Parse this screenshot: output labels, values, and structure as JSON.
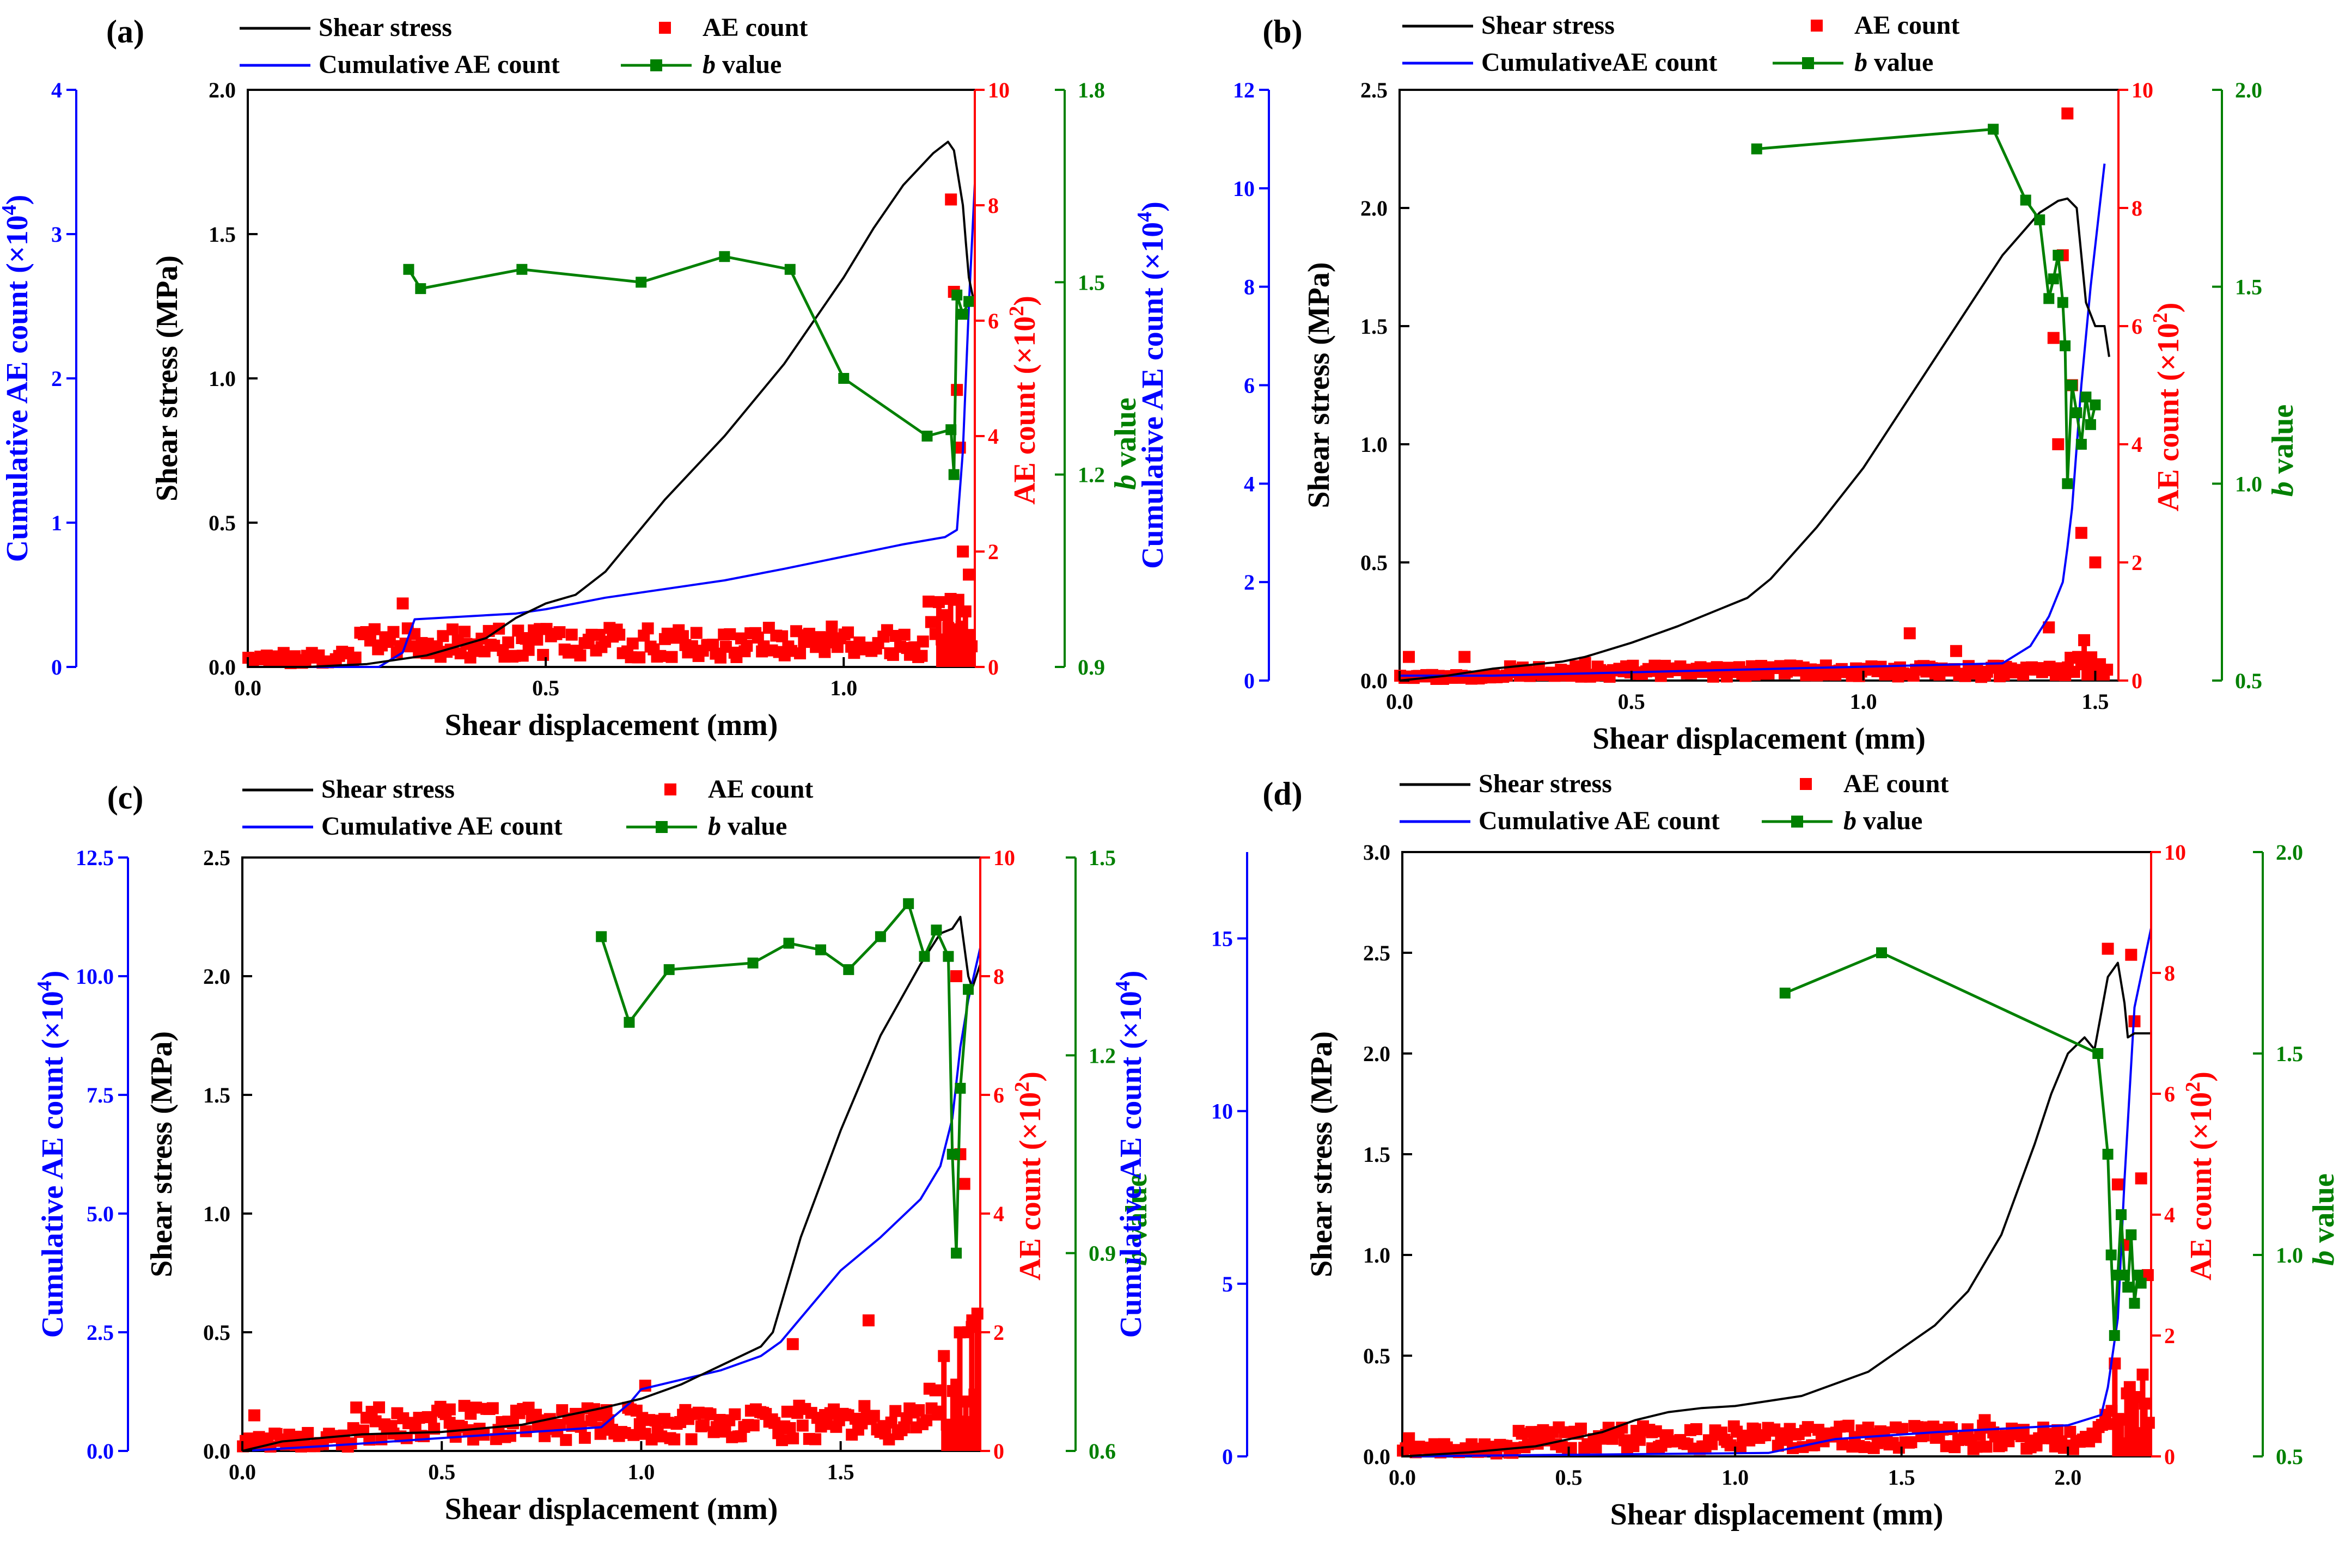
{
  "colors": {
    "stress": "#000000",
    "cum": "#0000ff",
    "ae": "#ff0000",
    "b": "#008000"
  },
  "chart_data": [
    {
      "panel": "(a)",
      "type": "line",
      "legend": {
        "stress": "Shear stress",
        "ae": "AE count",
        "cum": "Cumulative AE count",
        "b": "b value"
      },
      "legend_italic_prefix": "b",
      "xlabel": "Shear displacement (mm)",
      "ylabel_stress": "Shear stress (MPa)",
      "ylabel_cum": {
        "main": "Cumulative AE count (×10",
        "sup": "4",
        "end": ")"
      },
      "ylabel_ae": {
        "main": "AE count (×10",
        "sup": "2",
        "end": ")"
      },
      "ylabel_b": {
        "italic": "b",
        "rest": " value"
      },
      "xlim": [
        0,
        1.22
      ],
      "xticks": [
        0.0,
        0.5,
        1.0
      ],
      "xtick_labels": [
        "0.0",
        "0.5",
        "1.0"
      ],
      "stress_lim": [
        0,
        2.0
      ],
      "stress_ticks": [
        0.0,
        0.5,
        1.0,
        1.5,
        2.0
      ],
      "stress_tick_labels": [
        "0.0",
        "0.5",
        "1.0",
        "1.5",
        "2.0"
      ],
      "cum_lim": [
        0,
        4
      ],
      "cum_ticks": [
        0,
        1,
        2,
        3,
        4
      ],
      "cum_tick_labels": [
        "0",
        "1",
        "2",
        "3",
        "4"
      ],
      "ae_lim": [
        0,
        10
      ],
      "ae_ticks": [
        0,
        2,
        4,
        6,
        8,
        10
      ],
      "ae_tick_labels": [
        "0",
        "2",
        "4",
        "6",
        "8",
        "10"
      ],
      "b_lim": [
        0.9,
        1.8
      ],
      "b_ticks": [
        0.9,
        1.2,
        1.5,
        1.8
      ],
      "b_tick_labels": [
        "0.9",
        "1.2",
        "1.5",
        "1.8"
      ],
      "series_stress": {
        "x": [
          0,
          0.1,
          0.2,
          0.3,
          0.4,
          0.45,
          0.5,
          0.55,
          0.6,
          0.7,
          0.8,
          0.9,
          1.0,
          1.05,
          1.1,
          1.15,
          1.175,
          1.185,
          1.2,
          1.205,
          1.21,
          1.22
        ],
        "y": [
          0,
          0,
          0.01,
          0.04,
          0.1,
          0.17,
          0.22,
          0.25,
          0.33,
          0.58,
          0.8,
          1.05,
          1.35,
          1.52,
          1.67,
          1.78,
          1.82,
          1.79,
          1.6,
          1.47,
          1.35,
          1.25
        ]
      },
      "series_cum": {
        "x": [
          0,
          0.22,
          0.26,
          0.28,
          0.45,
          0.5,
          0.6,
          0.8,
          0.9,
          1.1,
          1.17,
          1.19,
          1.2,
          1.21,
          1.22
        ],
        "y": [
          0,
          0,
          0.1,
          0.33,
          0.37,
          0.4,
          0.48,
          0.6,
          0.68,
          0.85,
          0.9,
          0.95,
          1.5,
          2.5,
          3.35
        ]
      },
      "series_ae": {
        "x_range": [
          0,
          1.22
        ],
        "typical_value": 0.4,
        "sample_count": 210,
        "spikes": [
          {
            "x": 0.26,
            "y": 1.1
          },
          {
            "x": 0.46,
            "y": 0.5
          },
          {
            "x": 0.98,
            "y": 0.7
          },
          {
            "x": 1.18,
            "y": 8.1
          },
          {
            "x": 1.185,
            "y": 6.5
          },
          {
            "x": 1.19,
            "y": 4.8
          },
          {
            "x": 1.195,
            "y": 3.8
          },
          {
            "x": 1.2,
            "y": 2.0
          },
          {
            "x": 1.21,
            "y": 1.6
          }
        ]
      },
      "series_b": {
        "x": [
          0.27,
          0.29,
          0.46,
          0.66,
          0.8,
          0.91,
          1.0,
          1.14,
          1.18,
          1.185,
          1.19,
          1.2,
          1.21
        ],
        "y": [
          1.52,
          1.49,
          1.52,
          1.5,
          1.54,
          1.52,
          1.35,
          1.26,
          1.27,
          1.2,
          1.48,
          1.45,
          1.47
        ]
      }
    },
    {
      "panel": "(b)",
      "type": "line",
      "legend": {
        "stress": "Shear stress",
        "ae": "AE count",
        "cum": "CumulativeAE count",
        "b": "b value"
      },
      "xlabel": "Shear displacement (mm)",
      "ylabel_stress": "Shear stress (MPa)",
      "ylabel_cum": {
        "main": "Cumulative AE count (×10",
        "sup": "4",
        "end": ")"
      },
      "ylabel_ae": {
        "main": "AE count (×10",
        "sup": "2",
        "end": ")"
      },
      "ylabel_b": {
        "italic": "b",
        "rest": " value"
      },
      "xlim": [
        0,
        1.55
      ],
      "xticks": [
        0.0,
        0.5,
        1.0,
        1.5
      ],
      "xtick_labels": [
        "0.0",
        "0.5",
        "1.0",
        "1.5"
      ],
      "stress_lim": [
        0,
        2.5
      ],
      "stress_ticks": [
        0.0,
        0.5,
        1.0,
        1.5,
        2.0,
        2.5
      ],
      "stress_tick_labels": [
        "0.0",
        "0.5",
        "1.0",
        "1.5",
        "2.0",
        "2.5"
      ],
      "cum_lim": [
        0,
        12
      ],
      "cum_ticks": [
        0,
        2,
        4,
        6,
        8,
        10,
        12
      ],
      "cum_tick_labels": [
        "0",
        "2",
        "4",
        "6",
        "8",
        "10",
        "12"
      ],
      "ae_lim": [
        0,
        10
      ],
      "ae_ticks": [
        0,
        2,
        4,
        6,
        8,
        10
      ],
      "ae_tick_labels": [
        "0",
        "2",
        "4",
        "6",
        "8",
        "10"
      ],
      "b_lim": [
        0.5,
        2.0
      ],
      "b_ticks": [
        0.5,
        1.0,
        1.5,
        2.0
      ],
      "b_tick_labels": [
        "0.5",
        "1.0",
        "1.5",
        "2.0"
      ],
      "series_stress": {
        "x": [
          0,
          0.1,
          0.2,
          0.3,
          0.35,
          0.4,
          0.5,
          0.6,
          0.7,
          0.75,
          0.8,
          0.9,
          1.0,
          1.1,
          1.2,
          1.3,
          1.38,
          1.42,
          1.44,
          1.46,
          1.48,
          1.5,
          1.52,
          1.53
        ],
        "y": [
          0,
          0.02,
          0.05,
          0.07,
          0.08,
          0.1,
          0.16,
          0.23,
          0.31,
          0.35,
          0.43,
          0.65,
          0.9,
          1.2,
          1.5,
          1.8,
          1.98,
          2.03,
          2.04,
          2.0,
          1.6,
          1.5,
          1.5,
          1.37
        ]
      },
      "series_cum": {
        "x": [
          0,
          0.2,
          1.3,
          1.36,
          1.4,
          1.43,
          1.44,
          1.45,
          1.47,
          1.49,
          1.52
        ],
        "y": [
          0.1,
          0.1,
          0.35,
          0.7,
          1.3,
          2.0,
          2.7,
          3.5,
          6.0,
          8.0,
          10.5
        ]
      },
      "series_ae": {
        "x_range": [
          0,
          1.53
        ],
        "typical_value": 0.15,
        "sample_count": 220,
        "spikes": [
          {
            "x": 0.02,
            "y": 0.4
          },
          {
            "x": 0.14,
            "y": 0.4
          },
          {
            "x": 0.4,
            "y": 0.3
          },
          {
            "x": 1.1,
            "y": 0.8
          },
          {
            "x": 1.2,
            "y": 0.5
          },
          {
            "x": 1.4,
            "y": 0.9
          },
          {
            "x": 1.44,
            "y": 9.6
          },
          {
            "x": 1.43,
            "y": 7.2
          },
          {
            "x": 1.41,
            "y": 5.8
          },
          {
            "x": 1.45,
            "y": 5.0
          },
          {
            "x": 1.42,
            "y": 4.0
          },
          {
            "x": 1.47,
            "y": 2.5
          },
          {
            "x": 1.5,
            "y": 2.0
          }
        ]
      },
      "series_b": {
        "x": [
          0.77,
          1.28,
          1.35,
          1.38,
          1.4,
          1.41,
          1.42,
          1.43,
          1.435,
          1.44,
          1.45,
          1.46,
          1.47,
          1.48,
          1.49,
          1.5
        ],
        "y": [
          1.85,
          1.9,
          1.72,
          1.67,
          1.47,
          1.52,
          1.58,
          1.46,
          1.35,
          1.0,
          1.25,
          1.18,
          1.1,
          1.22,
          1.15,
          1.2
        ]
      }
    },
    {
      "panel": "(c)",
      "type": "line",
      "legend": {
        "stress": "Shear stress",
        "ae": "AE count",
        "cum": "Cumulative AE count",
        "b": "b value"
      },
      "xlabel": "Shear displacement (mm)",
      "ylabel_stress": "Shear stress (MPa)",
      "ylabel_cum": {
        "main": "Cumulative AE count (×10",
        "sup": "4",
        "end": ")"
      },
      "ylabel_ae": {
        "main": "AE count (×10",
        "sup": "2",
        "end": ")"
      },
      "ylabel_b": {
        "italic": "b",
        "rest": " value"
      },
      "xlim": [
        0,
        1.85
      ],
      "xticks": [
        0.0,
        0.5,
        1.0,
        1.5
      ],
      "xtick_labels": [
        "0.0",
        "0.5",
        "1.0",
        "1.5"
      ],
      "stress_lim": [
        0,
        2.5
      ],
      "stress_ticks": [
        0.0,
        0.5,
        1.0,
        1.5,
        2.0,
        2.5
      ],
      "stress_tick_labels": [
        "0.0",
        "0.5",
        "1.0",
        "1.5",
        "2.0",
        "2.5"
      ],
      "cum_lim": [
        0,
        12.5
      ],
      "cum_ticks": [
        0.0,
        2.5,
        5.0,
        7.5,
        10.0,
        12.5
      ],
      "cum_tick_labels": [
        "0.0",
        "2.5",
        "5.0",
        "7.5",
        "10.0",
        "12.5"
      ],
      "ae_lim": [
        0,
        10
      ],
      "ae_ticks": [
        0,
        2,
        4,
        6,
        8,
        10
      ],
      "ae_tick_labels": [
        "0",
        "2",
        "4",
        "6",
        "8",
        "10"
      ],
      "b_lim": [
        0.6,
        1.5
      ],
      "b_ticks": [
        0.6,
        0.9,
        1.2,
        1.5
      ],
      "b_tick_labels": [
        "0.6",
        "0.9",
        "1.2",
        "1.5"
      ],
      "series_stress": {
        "x": [
          0,
          0.1,
          0.3,
          0.5,
          0.7,
          0.9,
          1.0,
          1.1,
          1.2,
          1.3,
          1.33,
          1.4,
          1.5,
          1.6,
          1.7,
          1.75,
          1.78,
          1.8,
          1.82,
          1.83,
          1.85
        ],
        "y": [
          0,
          0.04,
          0.07,
          0.08,
          0.11,
          0.18,
          0.22,
          0.28,
          0.36,
          0.44,
          0.5,
          0.9,
          1.35,
          1.75,
          2.05,
          2.18,
          2.2,
          2.25,
          2.0,
          1.95,
          2.05
        ]
      },
      "series_cum": {
        "x": [
          0,
          0.2,
          0.9,
          0.97,
          1.0,
          1.1,
          1.2,
          1.3,
          1.35,
          1.4,
          1.5,
          1.6,
          1.7,
          1.75,
          1.78,
          1.8,
          1.82,
          1.85
        ],
        "y": [
          0,
          0.1,
          0.5,
          1.0,
          1.3,
          1.5,
          1.7,
          2.0,
          2.3,
          2.8,
          3.8,
          4.5,
          5.3,
          6.0,
          7.0,
          8.5,
          9.5,
          10.6
        ]
      },
      "series_ae": {
        "x_range": [
          0,
          1.85
        ],
        "typical_value": 0.45,
        "sample_count": 240,
        "spikes": [
          {
            "x": 0.03,
            "y": 0.6
          },
          {
            "x": 0.52,
            "y": 0.7
          },
          {
            "x": 1.01,
            "y": 1.1
          },
          {
            "x": 1.38,
            "y": 1.8
          },
          {
            "x": 1.57,
            "y": 2.2
          },
          {
            "x": 1.79,
            "y": 8.0
          },
          {
            "x": 1.8,
            "y": 5.0
          },
          {
            "x": 1.81,
            "y": 4.5
          },
          {
            "x": 1.82,
            "y": 2.0
          },
          {
            "x": 1.83,
            "y": 2.2
          }
        ]
      },
      "series_b": {
        "x": [
          0.9,
          0.97,
          1.07,
          1.28,
          1.37,
          1.45,
          1.52,
          1.6,
          1.67,
          1.71,
          1.74,
          1.77,
          1.78,
          1.79,
          1.8,
          1.82
        ],
        "y": [
          1.38,
          1.25,
          1.33,
          1.34,
          1.37,
          1.36,
          1.33,
          1.38,
          1.43,
          1.35,
          1.39,
          1.35,
          1.05,
          0.9,
          1.15,
          1.3
        ]
      }
    },
    {
      "panel": "(d)",
      "type": "line",
      "legend": {
        "stress": "Shear stress",
        "ae": "AE count",
        "cum": "Cumulative AE count",
        "b": "b value"
      },
      "xlabel": "Shear displacement (mm)",
      "ylabel_stress": "Shear stress (MPa)",
      "ylabel_cum": {
        "main": "Cumulative AE count (×10",
        "sup": "4",
        "end": ")"
      },
      "ylabel_ae": {
        "main": "AE count (×10",
        "sup": "2",
        "end": ")"
      },
      "ylabel_b": {
        "italic": "b",
        "rest": " value"
      },
      "xlim": [
        0,
        2.25
      ],
      "xticks": [
        0.0,
        0.5,
        1.0,
        1.5,
        2.0
      ],
      "xtick_labels": [
        "0.0",
        "0.5",
        "1.0",
        "1.5",
        "2.0"
      ],
      "stress_lim": [
        0,
        3.0
      ],
      "stress_ticks": [
        0.0,
        0.5,
        1.0,
        1.5,
        2.0,
        2.5,
        3.0
      ],
      "stress_tick_labels": [
        "0.0",
        "0.5",
        "1.0",
        "1.5",
        "2.0",
        "2.5",
        "3.0"
      ],
      "cum_lim": [
        0,
        17.5
      ],
      "cum_ticks": [
        0,
        5,
        10,
        15
      ],
      "cum_tick_labels": [
        "0",
        "5",
        "10",
        "15"
      ],
      "ae_lim": [
        0,
        10
      ],
      "ae_ticks": [
        0,
        2,
        4,
        6,
        8,
        10
      ],
      "ae_tick_labels": [
        "0",
        "2",
        "4",
        "6",
        "8",
        "10"
      ],
      "b_lim": [
        0.5,
        2.0
      ],
      "b_ticks": [
        0.5,
        1.0,
        1.5,
        2.0
      ],
      "b_tick_labels": [
        "0.5",
        "1.0",
        "1.5",
        "2.0"
      ],
      "series_stress": {
        "x": [
          0,
          0.2,
          0.4,
          0.6,
          0.7,
          0.8,
          0.9,
          1.0,
          1.2,
          1.4,
          1.6,
          1.7,
          1.8,
          1.9,
          1.95,
          2.0,
          2.05,
          2.08,
          2.1,
          2.12,
          2.15,
          2.17,
          2.18,
          2.2,
          2.25
        ],
        "y": [
          0,
          0.02,
          0.05,
          0.12,
          0.18,
          0.22,
          0.24,
          0.25,
          0.3,
          0.42,
          0.65,
          0.82,
          1.1,
          1.55,
          1.8,
          2.0,
          2.08,
          2.02,
          2.2,
          2.38,
          2.45,
          2.25,
          2.08,
          2.1,
          2.1
        ]
      },
      "series_cum": {
        "x": [
          0,
          1.1,
          1.3,
          1.6,
          2.0,
          2.1,
          2.12,
          2.15,
          2.17,
          2.2,
          2.25
        ],
        "y": [
          0,
          0.1,
          0.5,
          0.7,
          0.9,
          1.2,
          2.0,
          4.0,
          8.0,
          13.0,
          15.3
        ]
      },
      "series_ae": {
        "x_range": [
          0,
          2.25
        ],
        "typical_value": 0.3,
        "sample_count": 240,
        "spikes": [
          {
            "x": 0.02,
            "y": 0.3
          },
          {
            "x": 0.75,
            "y": 0.4
          },
          {
            "x": 1.75,
            "y": 0.6
          },
          {
            "x": 2.12,
            "y": 8.4
          },
          {
            "x": 2.19,
            "y": 8.3
          },
          {
            "x": 2.2,
            "y": 7.2
          },
          {
            "x": 2.15,
            "y": 4.5
          },
          {
            "x": 2.17,
            "y": 3.5
          },
          {
            "x": 2.22,
            "y": 4.6
          },
          {
            "x": 2.24,
            "y": 3.0
          }
        ]
      },
      "series_b": {
        "x": [
          1.15,
          1.44,
          2.09,
          2.12,
          2.13,
          2.14,
          2.15,
          2.16,
          2.17,
          2.18,
          2.19,
          2.2,
          2.21,
          2.22
        ],
        "y": [
          1.65,
          1.75,
          1.5,
          1.25,
          1.0,
          0.8,
          0.95,
          1.1,
          0.95,
          0.92,
          1.05,
          0.88,
          0.95,
          0.93
        ]
      }
    }
  ]
}
